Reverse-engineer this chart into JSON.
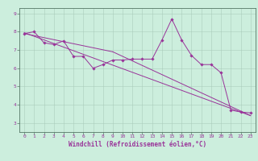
{
  "title": "",
  "xlabel": "Windchill (Refroidissement éolien,°C)",
  "ylabel": "",
  "bg_color": "#cceedd",
  "line_color": "#993399",
  "xlim": [
    -0.5,
    23.5
  ],
  "ylim": [
    2.5,
    9.3
  ],
  "xticks": [
    0,
    1,
    2,
    3,
    4,
    5,
    6,
    7,
    8,
    9,
    10,
    11,
    12,
    13,
    14,
    15,
    16,
    17,
    18,
    19,
    20,
    21,
    22,
    23
  ],
  "yticks": [
    3,
    4,
    5,
    6,
    7,
    8,
    9
  ],
  "scatter_x": [
    0,
    1,
    2,
    3,
    4,
    5,
    6,
    7,
    8,
    9,
    10,
    11,
    12,
    13,
    14,
    15,
    16,
    17,
    18,
    19,
    20,
    21,
    22,
    23
  ],
  "scatter_y": [
    7.9,
    8.0,
    7.4,
    7.3,
    7.5,
    6.65,
    6.65,
    6.0,
    6.2,
    6.45,
    6.45,
    6.5,
    6.5,
    6.5,
    7.55,
    8.7,
    7.55,
    6.7,
    6.2,
    6.2,
    5.75,
    3.7,
    3.6,
    3.55
  ],
  "line1_x": [
    0,
    23
  ],
  "line1_y": [
    7.95,
    3.4
  ],
  "line2_x": [
    0,
    9
  ],
  "line2_y": [
    7.9,
    6.9
  ],
  "line3_x": [
    9,
    23
  ],
  "line3_y": [
    6.9,
    3.4
  ],
  "grid_color": "#aaccbb",
  "tick_fontsize": 4.5,
  "xlabel_fontsize": 5.5
}
